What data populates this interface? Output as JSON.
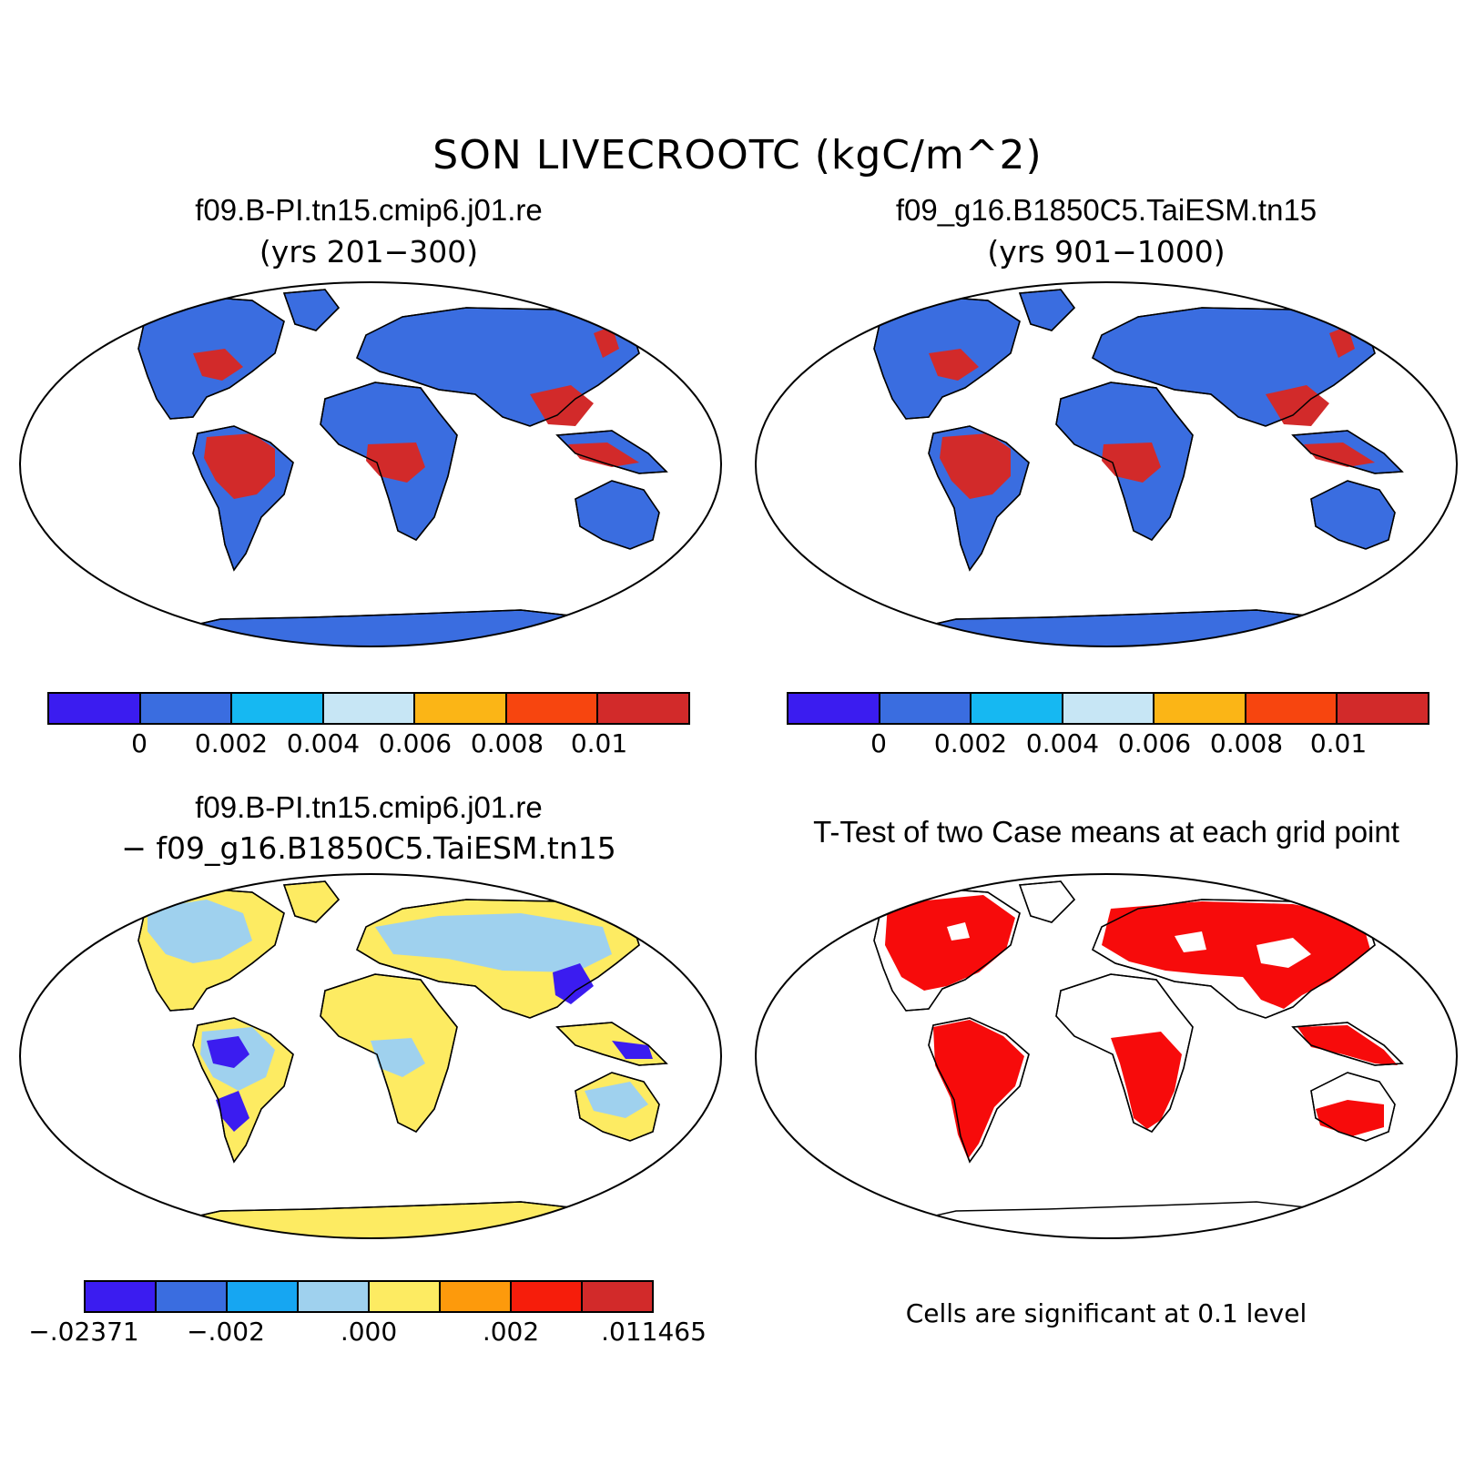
{
  "title": "SON LIVECROOTC (kgC/m^2)",
  "panels": [
    {
      "title": "f09.B-PI.tn15.cmip6.j01.re",
      "subtitle": "(yrs 201−300)"
    },
    {
      "title": "f09_g16.B1850C5.TaiESM.tn15",
      "subtitle": "(yrs 901−1000)"
    },
    {
      "title": "f09.B-PI.tn15.cmip6.j01.re",
      "subtitle": "− f09_g16.B1850C5.TaiESM.tn15"
    },
    {
      "title": "T-Test of two Case means at each grid point",
      "note": "Cells are significant at 0.1 level"
    }
  ],
  "colorbar_abs": {
    "colors": [
      "#3b1cf0",
      "#3a6de0",
      "#16b8f2",
      "#c7e6f5",
      "#fbb516",
      "#f7450f",
      "#d22a2a"
    ],
    "labels": [
      "0",
      "0.002",
      "0.004",
      "0.006",
      "0.008",
      "0.01"
    ]
  },
  "colorbar_diff": {
    "colors": [
      "#3b1cf0",
      "#3a6de0",
      "#16a6f2",
      "#9fd1ee",
      "#fdeb62",
      "#fd9a0c",
      "#f61d0b",
      "#d22a2a"
    ],
    "labels": [
      ".02371",
      "−.002",
      ".000",
      ".002",
      ".011465"
    ],
    "first_label_prefix": "−"
  },
  "map_colors": {
    "ocean": "#ffffff",
    "land_abs": "#3a6de0",
    "tropics_abs": "#d22a2a",
    "land_diff": "#fdeb62",
    "diff_blue": "#9fd1ee",
    "diff_deep": "#3b1cf0",
    "signif": "#f70b0b"
  }
}
